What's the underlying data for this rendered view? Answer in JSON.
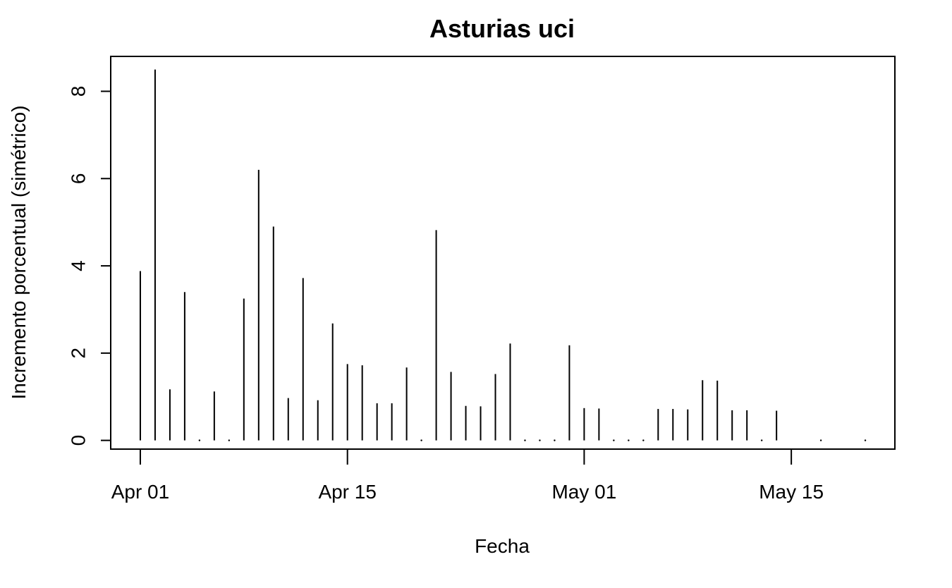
{
  "chart_data": {
    "type": "bar",
    "title": "Asturias uci",
    "xlabel": "Fecha",
    "ylabel": "Incremento porcentual (simétrico)",
    "x_tick_labels": [
      {
        "date": "2020-04-01",
        "label": "Apr 01"
      },
      {
        "date": "2020-04-15",
        "label": "Apr 15"
      },
      {
        "date": "2020-05-01",
        "label": "May 01"
      },
      {
        "date": "2020-05-15",
        "label": "May 15"
      }
    ],
    "y_ticks": [
      0,
      2,
      4,
      6,
      8
    ],
    "xlim": [
      "2020-03-30",
      "2020-05-22"
    ],
    "ylim": [
      -0.2,
      8.8
    ],
    "grid": false,
    "legend": "none",
    "x": [
      "2020-04-01",
      "2020-04-02",
      "2020-04-03",
      "2020-04-04",
      "2020-04-05",
      "2020-04-06",
      "2020-04-07",
      "2020-04-08",
      "2020-04-09",
      "2020-04-10",
      "2020-04-11",
      "2020-04-12",
      "2020-04-13",
      "2020-04-14",
      "2020-04-15",
      "2020-04-16",
      "2020-04-17",
      "2020-04-18",
      "2020-04-19",
      "2020-04-20",
      "2020-04-21",
      "2020-04-22",
      "2020-04-23",
      "2020-04-24",
      "2020-04-25",
      "2020-04-26",
      "2020-04-27",
      "2020-04-28",
      "2020-04-29",
      "2020-04-30",
      "2020-05-01",
      "2020-05-02",
      "2020-05-03",
      "2020-05-04",
      "2020-05-05",
      "2020-05-06",
      "2020-05-07",
      "2020-05-08",
      "2020-05-09",
      "2020-05-10",
      "2020-05-11",
      "2020-05-12",
      "2020-05-13",
      "2020-05-14",
      "2020-05-17",
      "2020-05-20"
    ],
    "values": [
      3.88,
      8.5,
      1.17,
      3.4,
      0,
      1.12,
      0,
      3.25,
      6.2,
      4.9,
      0.97,
      3.72,
      0.92,
      2.68,
      1.75,
      1.72,
      0.85,
      0.85,
      1.67,
      0,
      4.82,
      1.57,
      0.79,
      0.78,
      1.52,
      2.22,
      0,
      0,
      0,
      2.18,
      0.74,
      0.73,
      0,
      0,
      0,
      0.72,
      0.72,
      0.71,
      1.38,
      1.37,
      0.69,
      0.69,
      0,
      0.68,
      0,
      0
    ],
    "colors": {
      "bars": "#000000",
      "frame": "#000000",
      "background": "#ffffff"
    }
  }
}
